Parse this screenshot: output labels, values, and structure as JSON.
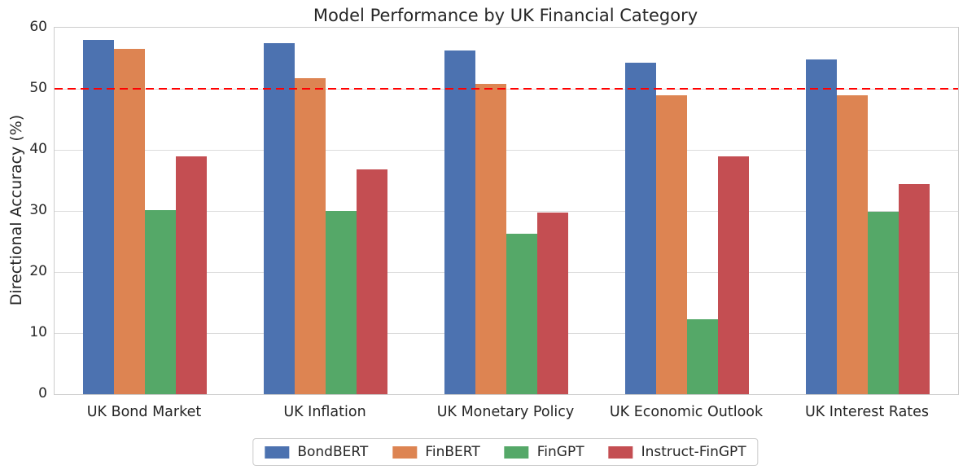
{
  "chart_data": {
    "type": "bar",
    "title": "Model Performance by UK Financial Category",
    "ylabel": "Directional Accuracy (%)",
    "xlabel": "",
    "categories": [
      "UK Bond Market",
      "UK Inflation",
      "UK Monetary Policy",
      "UK Economic Outlook",
      "UK Interest Rates"
    ],
    "series": [
      {
        "name": "BondBERT",
        "color": "#4C72B0",
        "values": [
          58.0,
          57.5,
          56.3,
          54.3,
          54.8
        ]
      },
      {
        "name": "FinBERT",
        "color": "#DD8452",
        "values": [
          56.5,
          51.8,
          50.8,
          49.0,
          49.0
        ]
      },
      {
        "name": "FinGPT",
        "color": "#55A868",
        "values": [
          30.2,
          30.0,
          26.3,
          12.3,
          29.9
        ]
      },
      {
        "name": "Instruct-FinGPT",
        "color": "#C44E52",
        "values": [
          39.0,
          36.8,
          29.8,
          39.0,
          34.4
        ]
      }
    ],
    "ylim": [
      0,
      60
    ],
    "yticks": [
      0,
      10,
      20,
      30,
      40,
      50,
      60
    ],
    "reference_line": {
      "value": 50,
      "color": "#FF0000",
      "style": "dashed"
    },
    "grid": true,
    "grid_color": "#DCDCDC",
    "spine_color": "#CCCCCC",
    "text_color": "#262626",
    "legend_position": "bottom"
  }
}
